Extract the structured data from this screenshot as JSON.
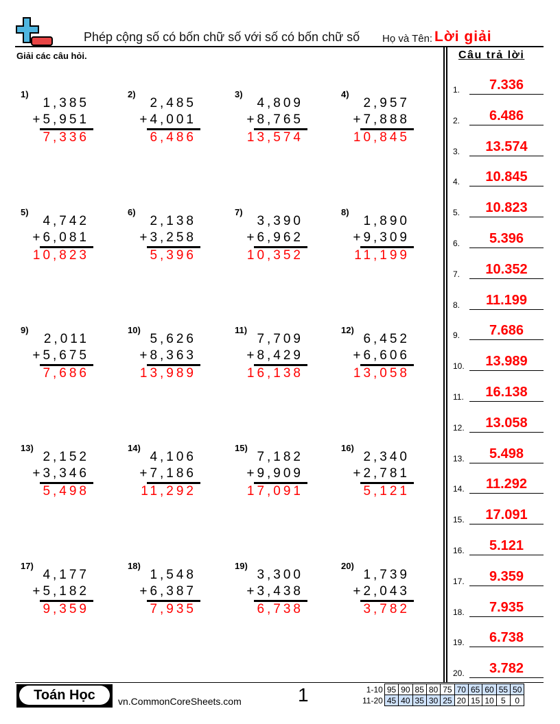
{
  "header": {
    "title": "Phép cộng số có bốn chữ số với số có bốn chữ số",
    "name_label": "Họ và Tên:",
    "name_value": "Lời giải",
    "logo_icon": "plus-minus-logo-icon",
    "colors": {
      "logo_blue": "#4fb6e0",
      "logo_red": "#e84545",
      "answer_red": "#ff0000"
    }
  },
  "instructions": "Giải các câu hỏi.",
  "problems": [
    {
      "label": "1)",
      "a": "1,385",
      "b": "+5,951",
      "answer": "7,336"
    },
    {
      "label": "2)",
      "a": "2,485",
      "b": "+4,001",
      "answer": "6,486"
    },
    {
      "label": "3)",
      "a": "4,809",
      "b": "+8,765",
      "answer": "13,574"
    },
    {
      "label": "4)",
      "a": "2,957",
      "b": "+7,888",
      "answer": "10,845"
    },
    {
      "label": "5)",
      "a": "4,742",
      "b": "+6,081",
      "answer": "10,823"
    },
    {
      "label": "6)",
      "a": "2,138",
      "b": "+3,258",
      "answer": "5,396"
    },
    {
      "label": "7)",
      "a": "3,390",
      "b": "+6,962",
      "answer": "10,352"
    },
    {
      "label": "8)",
      "a": "1,890",
      "b": "+9,309",
      "answer": "11,199"
    },
    {
      "label": "9)",
      "a": "2,011",
      "b": "+5,675",
      "answer": "7,686"
    },
    {
      "label": "10)",
      "a": "5,626",
      "b": "+8,363",
      "answer": "13,989"
    },
    {
      "label": "11)",
      "a": "7,709",
      "b": "+8,429",
      "answer": "16,138"
    },
    {
      "label": "12)",
      "a": "6,452",
      "b": "+6,606",
      "answer": "13,058"
    },
    {
      "label": "13)",
      "a": "2,152",
      "b": "+3,346",
      "answer": "5,498"
    },
    {
      "label": "14)",
      "a": "4,106",
      "b": "+7,186",
      "answer": "11,292"
    },
    {
      "label": "15)",
      "a": "7,182",
      "b": "+9,909",
      "answer": "17,091"
    },
    {
      "label": "16)",
      "a": "2,340",
      "b": "+2,781",
      "answer": "5,121"
    },
    {
      "label": "17)",
      "a": "4,177",
      "b": "+5,182",
      "answer": "9,359"
    },
    {
      "label": "18)",
      "a": "1,548",
      "b": "+6,387",
      "answer": "7,935"
    },
    {
      "label": "19)",
      "a": "3,300",
      "b": "+3,438",
      "answer": "6,738"
    },
    {
      "label": "20)",
      "a": "1,739",
      "b": "+2,043",
      "answer": "3,782"
    }
  ],
  "answer_key": {
    "heading": "Câu trả lời",
    "items": [
      {
        "num": "1.",
        "value": "7.336"
      },
      {
        "num": "2.",
        "value": "6.486"
      },
      {
        "num": "3.",
        "value": "13.574"
      },
      {
        "num": "4.",
        "value": "10.845"
      },
      {
        "num": "5.",
        "value": "10.823"
      },
      {
        "num": "6.",
        "value": "5.396"
      },
      {
        "num": "7.",
        "value": "10.352"
      },
      {
        "num": "8.",
        "value": "11.199"
      },
      {
        "num": "9.",
        "value": "7.686"
      },
      {
        "num": "10.",
        "value": "13.989"
      },
      {
        "num": "11.",
        "value": "16.138"
      },
      {
        "num": "12.",
        "value": "13.058"
      },
      {
        "num": "13.",
        "value": "5.498"
      },
      {
        "num": "14.",
        "value": "11.292"
      },
      {
        "num": "15.",
        "value": "17.091"
      },
      {
        "num": "16.",
        "value": "5.121"
      },
      {
        "num": "17.",
        "value": "9.359"
      },
      {
        "num": "18.",
        "value": "7.935"
      },
      {
        "num": "19.",
        "value": "6.738"
      },
      {
        "num": "20.",
        "value": "3.782"
      }
    ]
  },
  "footer": {
    "brand": "Toán Học",
    "site": "vn.CommonCoreSheets.com",
    "page": "1",
    "score_rows": [
      {
        "label": "1-10",
        "cells": [
          "95",
          "90",
          "85",
          "80",
          "75",
          "70",
          "65",
          "60",
          "55",
          "50"
        ],
        "highlight_from": 5
      },
      {
        "label": "11-20",
        "cells": [
          "45",
          "40",
          "35",
          "30",
          "25",
          "20",
          "15",
          "10",
          "5",
          "0"
        ],
        "highlight_to": 5
      }
    ]
  }
}
